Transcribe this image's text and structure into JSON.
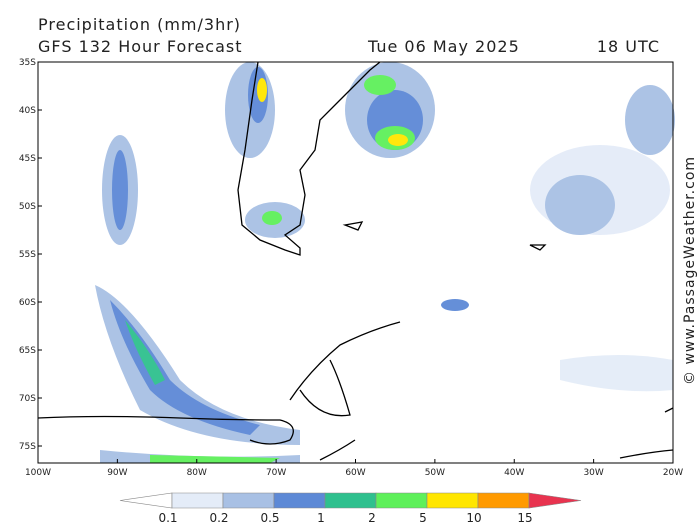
{
  "header": {
    "title": "Precipitation (mm/3hr)",
    "subtitle": "GFS 132 Hour Forecast",
    "date": "Tue 06 May 2025",
    "time": "18 UTC"
  },
  "map": {
    "lat_labels": [
      "35S",
      "40S",
      "45S",
      "50S",
      "55S",
      "60S",
      "65S",
      "70S",
      "75S"
    ],
    "lon_labels": [
      "100W",
      "90W",
      "80W",
      "70W",
      "60W",
      "50W",
      "40W",
      "30W",
      "20W"
    ]
  },
  "legend": {
    "labels": [
      "0.1",
      "0.2",
      "0.5",
      "1",
      "2",
      "5",
      "10",
      "15"
    ],
    "colors": [
      "#ffffff",
      "#e4ecf8",
      "#a8c0e4",
      "#5d89d6",
      "#2fc08e",
      "#5ef05a",
      "#ffe600",
      "#ff9a00",
      "#e8334f"
    ]
  },
  "credit": "© www.PassageWeather.com"
}
